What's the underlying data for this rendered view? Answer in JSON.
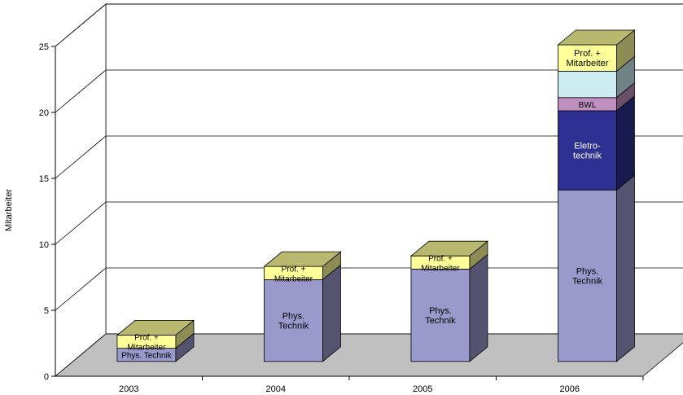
{
  "chart_data": {
    "type": "bar",
    "stacked": true,
    "three_d": true,
    "title": "",
    "xlabel": "",
    "ylabel": "Mitarbeiter",
    "ylim": [
      0,
      25
    ],
    "yticks": [
      "0",
      "5",
      "10",
      "15",
      "20",
      "25"
    ],
    "grid": true,
    "legend": "none",
    "categories": [
      "2003",
      "2004",
      "2005",
      "2006"
    ],
    "series": [
      {
        "name": "Phys. Technik",
        "values": [
          1,
          6.2,
          7,
          13
        ],
        "labels": [
          "Phys. Technik",
          "Phys.\nTechnik",
          "Phys.\nTechnik",
          "Phys.\nTechnik"
        ],
        "color": "#9999cc"
      },
      {
        "name": "Eletro-technik",
        "values": [
          0,
          0,
          0,
          6
        ],
        "labels": [
          "",
          "",
          "",
          "Eletro-\ntechnik"
        ],
        "color": "#2e3192"
      },
      {
        "name": "BWL",
        "values": [
          0,
          0,
          0,
          1
        ],
        "labels": [
          "",
          "",
          "",
          "BWL"
        ],
        "color": "#bf8fbf"
      },
      {
        "name": "",
        "values": [
          0,
          0,
          0,
          2
        ],
        "labels": [
          "",
          "",
          "",
          ""
        ],
        "color": "#ccecf2"
      },
      {
        "name": "Prof. + Mitarbeiter",
        "values": [
          1,
          1,
          1,
          2
        ],
        "labels": [
          "Prof. +\nMitarbeiter",
          "Prof. +\nMitarbeiter",
          "Prof. +\nMitarbeiter",
          "Prof. +\nMitarbeiter"
        ],
        "color": "#ffff99"
      }
    ]
  }
}
